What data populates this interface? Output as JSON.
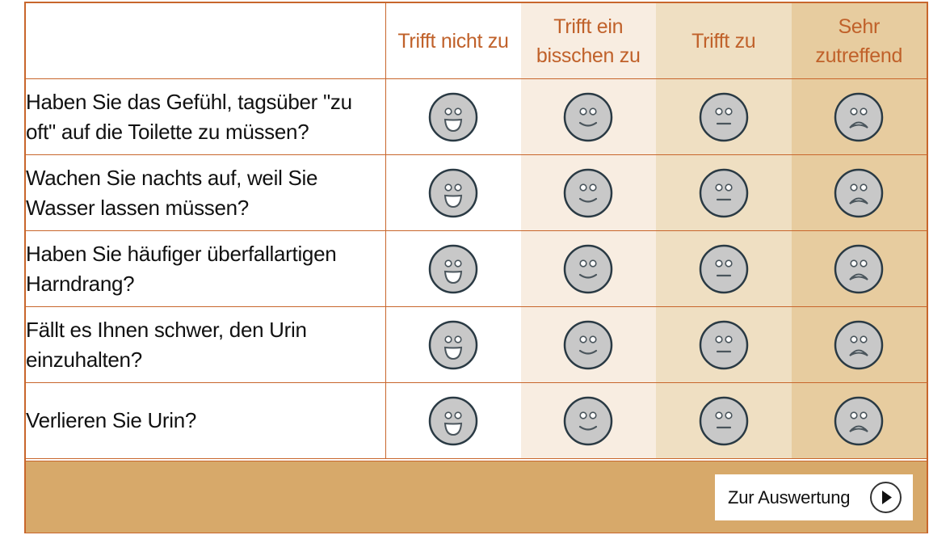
{
  "columns": [
    {
      "label": "Trifft nicht zu",
      "face": "laughing-face",
      "color": "#ffffff"
    },
    {
      "label": "Trifft ein bisschen zu",
      "face": "smiling-face",
      "color": "#f8ede1"
    },
    {
      "label": "Trifft zu",
      "face": "neutral-face",
      "color": "#efdfc2"
    },
    {
      "label": "Sehr zutreffend",
      "face": "sad-face",
      "color": "#e7cc9f"
    }
  ],
  "questions": [
    "Haben Sie das Gefühl, tagsüber \"zu oft\" auf die Toilette zu müssen?",
    "Wachen Sie nachts auf, weil Sie Wasser lassen müssen?",
    "Haben Sie häufiger überfallartigen Harndrang?",
    "Fällt es Ihnen schwer, den Urin einzuhalten?",
    "Verlieren Sie Urin?"
  ],
  "footer": {
    "submit_label": "Zur Auswertung",
    "submit_icon": "play-circle-icon"
  },
  "colors": {
    "border": "#c8662c",
    "header_text": "#c0612a",
    "footer_bg": "#d7a96a",
    "face_fill": "#c8c8c8",
    "face_stroke": "#2a3a44"
  }
}
